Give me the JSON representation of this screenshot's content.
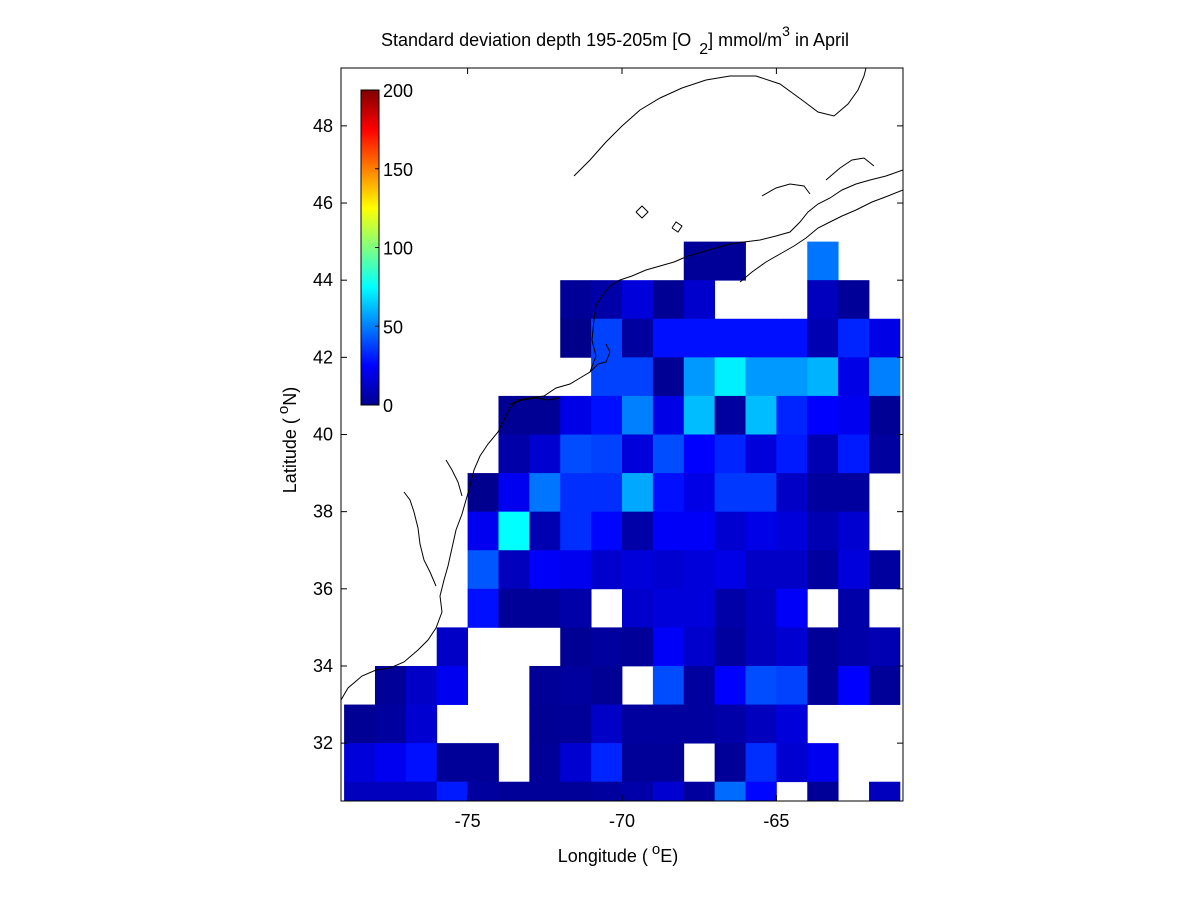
{
  "chart_data": {
    "type": "heatmap",
    "title": "Standard deviation depth 195-205m [O",
    "title_sub": "2",
    "title_mid": "] mmol/m",
    "title_sup": "3",
    "title_end": " in April",
    "xlabel": "Longitude (",
    "xlabel_deg": "o",
    "xlabel_end": "E)",
    "ylabel": "Latitude (",
    "ylabel_deg": "o",
    "ylabel_end": "N)",
    "xlim": [
      -79.1,
      -60.9
    ],
    "ylim": [
      30.5,
      49.5
    ],
    "x_ticks": [
      -75,
      -70,
      -65
    ],
    "x_tick_labels": [
      "-75",
      "-70",
      "-65"
    ],
    "y_ticks": [
      32,
      34,
      36,
      38,
      40,
      42,
      44,
      46,
      48
    ],
    "y_tick_labels": [
      "32",
      "34",
      "36",
      "38",
      "40",
      "42",
      "44",
      "46",
      "48"
    ],
    "grid": false,
    "colormap": "jet",
    "clim": [
      0,
      200
    ],
    "colorbar": {
      "ticks": [
        0,
        50,
        100,
        150,
        200
      ],
      "tick_labels": [
        "0",
        "50",
        "100",
        "150",
        "200"
      ],
      "placement": "top-left"
    },
    "cell_size_deg": 1,
    "x_centers": [
      -78.5,
      -77.5,
      -76.5,
      -75.5,
      -74.5,
      -73.5,
      -72.5,
      -71.5,
      -70.5,
      -69.5,
      -68.5,
      -67.5,
      -66.5,
      -65.5,
      -64.5,
      -63.5,
      -62.5,
      -61.5
    ],
    "rows": [
      {
        "lat": 44.5,
        "values": [
          null,
          null,
          null,
          null,
          null,
          null,
          null,
          null,
          null,
          null,
          null,
          5,
          5,
          null,
          null,
          48,
          null,
          null
        ]
      },
      {
        "lat": 43.5,
        "values": [
          null,
          null,
          null,
          null,
          null,
          null,
          null,
          5,
          8,
          18,
          4,
          15,
          null,
          null,
          null,
          12,
          5,
          null
        ]
      },
      {
        "lat": 42.5,
        "values": [
          null,
          null,
          null,
          null,
          null,
          null,
          null,
          2,
          38,
          6,
          28,
          28,
          28,
          28,
          28,
          10,
          32,
          20
        ]
      },
      {
        "lat": 41.5,
        "values": [
          null,
          null,
          null,
          null,
          null,
          null,
          null,
          null,
          38,
          38,
          4,
          55,
          72,
          55,
          55,
          60,
          20,
          50
        ]
      },
      {
        "lat": 40.5,
        "values": [
          null,
          null,
          null,
          null,
          null,
          4,
          4,
          20,
          28,
          50,
          20,
          62,
          6,
          62,
          32,
          25,
          22,
          4
        ]
      },
      {
        "lat": 39.5,
        "values": [
          null,
          null,
          null,
          null,
          null,
          8,
          16,
          40,
          38,
          18,
          40,
          25,
          32,
          18,
          30,
          10,
          30,
          6
        ]
      },
      {
        "lat": 38.5,
        "values": [
          null,
          null,
          null,
          null,
          3,
          22,
          48,
          34,
          34,
          58,
          28,
          20,
          36,
          36,
          14,
          6,
          6,
          null
        ]
      },
      {
        "lat": 37.5,
        "values": [
          null,
          null,
          null,
          null,
          22,
          75,
          10,
          34,
          26,
          8,
          24,
          24,
          16,
          20,
          18,
          10,
          16,
          null
        ]
      },
      {
        "lat": 36.5,
        "values": [
          null,
          null,
          null,
          null,
          42,
          12,
          24,
          22,
          15,
          18,
          16,
          18,
          20,
          14,
          14,
          6,
          18,
          6
        ]
      },
      {
        "lat": 35.5,
        "values": [
          null,
          null,
          null,
          null,
          28,
          5,
          5,
          8,
          null,
          15,
          18,
          18,
          8,
          12,
          24,
          null,
          8,
          null
        ]
      },
      {
        "lat": 34.5,
        "values": [
          null,
          null,
          null,
          14,
          null,
          null,
          null,
          4,
          6,
          5,
          24,
          15,
          6,
          12,
          16,
          5,
          8,
          10
        ]
      },
      {
        "lat": 33.5,
        "values": [
          null,
          5,
          14,
          22,
          null,
          null,
          5,
          6,
          4,
          null,
          40,
          6,
          25,
          40,
          38,
          5,
          25,
          5
        ]
      },
      {
        "lat": 32.5,
        "values": [
          4,
          6,
          16,
          null,
          null,
          null,
          4,
          5,
          14,
          6,
          6,
          6,
          8,
          12,
          18,
          null,
          null,
          null
        ]
      },
      {
        "lat": 31.5,
        "values": [
          18,
          22,
          28,
          5,
          5,
          null,
          5,
          16,
          32,
          5,
          5,
          null,
          5,
          34,
          16,
          22,
          null,
          null
        ]
      },
      {
        "lat": 30.5,
        "values": [
          12,
          12,
          12,
          30,
          6,
          5,
          5,
          5,
          6,
          8,
          16,
          6,
          46,
          26,
          null,
          5,
          null,
          12
        ]
      }
    ]
  }
}
